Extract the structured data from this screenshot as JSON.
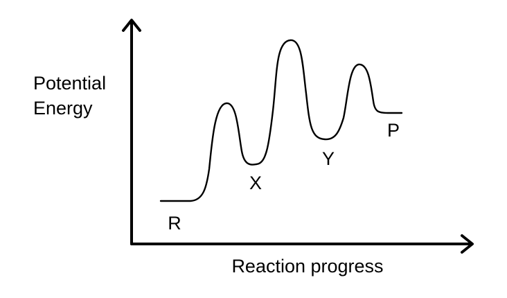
{
  "axes": {
    "y_label_line1": "Potential",
    "y_label_line2": "Energy",
    "x_label": "Reaction progress"
  },
  "points": {
    "reactant": "R",
    "intermediate_1": "X",
    "intermediate_2": "Y",
    "product": "P"
  },
  "colors": {
    "line": "#000000",
    "background": "#ffffff"
  }
}
